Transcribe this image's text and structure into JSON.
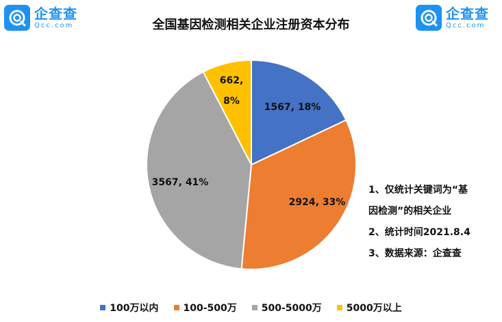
{
  "branding": {
    "name_cn": "企查查",
    "name_en": "Qcc.com"
  },
  "chart_data": {
    "type": "pie",
    "title": "全国基因检测相关企业注册资本分布",
    "categories": [
      "100万以内",
      "100-500万",
      "500-5000万",
      "5000万以上"
    ],
    "values": [
      1567,
      2924,
      3567,
      662
    ],
    "percent": [
      18,
      33,
      41,
      8
    ],
    "data_labels": [
      "1567, 18%",
      "2924, 33%",
      "3567, 41%",
      "662, 8%"
    ],
    "colors": [
      "#4472c4",
      "#ed7d31",
      "#a5a5a5",
      "#ffc000"
    ],
    "legend": "bottom"
  },
  "notes": [
    "1、仅统计关键词为“基",
    "因检测”的相关企业",
    "2、统计时间2021.8.4",
    "3、数据来源：企查查"
  ]
}
